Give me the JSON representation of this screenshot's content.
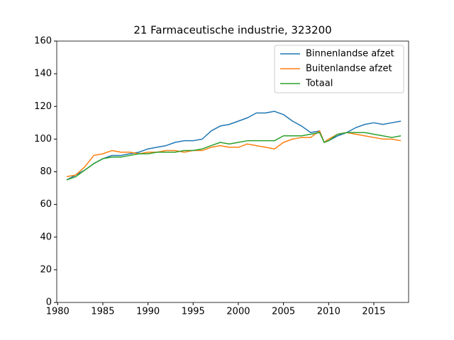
{
  "chart_data": {
    "type": "line",
    "title": "21 Farmaceutische industrie, 323200",
    "x": [
      1981,
      1982,
      1983,
      1984,
      1985,
      1986,
      1987,
      1988,
      1989,
      1990,
      1991,
      1992,
      1993,
      1994,
      1995,
      1996,
      1997,
      1998,
      1999,
      2000,
      2001,
      2002,
      2003,
      2004,
      2005,
      2006,
      2007,
      2008,
      2009,
      2009.5,
      2010,
      2011,
      2012,
      2013,
      2014,
      2015,
      2016,
      2017,
      2018
    ],
    "series": [
      {
        "name": "Binnenlandse afzet",
        "color": "#1f77b4",
        "values": [
          75,
          78,
          81,
          85,
          88,
          90,
          90,
          91,
          92,
          94,
          95,
          96,
          98,
          99,
          99,
          100,
          105,
          108,
          109,
          111,
          113,
          116,
          116,
          117,
          115,
          111,
          108,
          104,
          105,
          98,
          99,
          102,
          104,
          107,
          109,
          110,
          109,
          110,
          111
        ]
      },
      {
        "name": "Buitenlandse afzet",
        "color": "#ff7f0e",
        "values": [
          77,
          78,
          83,
          90,
          91,
          93,
          92,
          92,
          91,
          92,
          92,
          93,
          93,
          92,
          93,
          93,
          95,
          96,
          95,
          95,
          97,
          96,
          95,
          94,
          98,
          100,
          101,
          101,
          105,
          98,
          100,
          103,
          104,
          103,
          102,
          101,
          100,
          100,
          99
        ]
      },
      {
        "name": "Totaal",
        "color": "#2ca02c",
        "values": [
          75,
          77,
          81,
          85,
          88,
          89,
          89,
          90,
          91,
          91,
          92,
          92,
          92,
          93,
          93,
          94,
          96,
          98,
          97,
          98,
          99,
          99,
          99,
          99,
          102,
          102,
          102,
          103,
          104,
          98,
          99,
          103,
          104,
          104,
          104,
          103,
          102,
          101,
          102
        ]
      }
    ],
    "xlim": [
      1979.9,
      2018.85
    ],
    "ylim": [
      0,
      160
    ],
    "xticks": [
      1980,
      1985,
      1990,
      1995,
      2000,
      2005,
      2010,
      2015
    ],
    "yticks": [
      0,
      20,
      40,
      60,
      80,
      100,
      120,
      140,
      160
    ],
    "legend": "upper right"
  }
}
